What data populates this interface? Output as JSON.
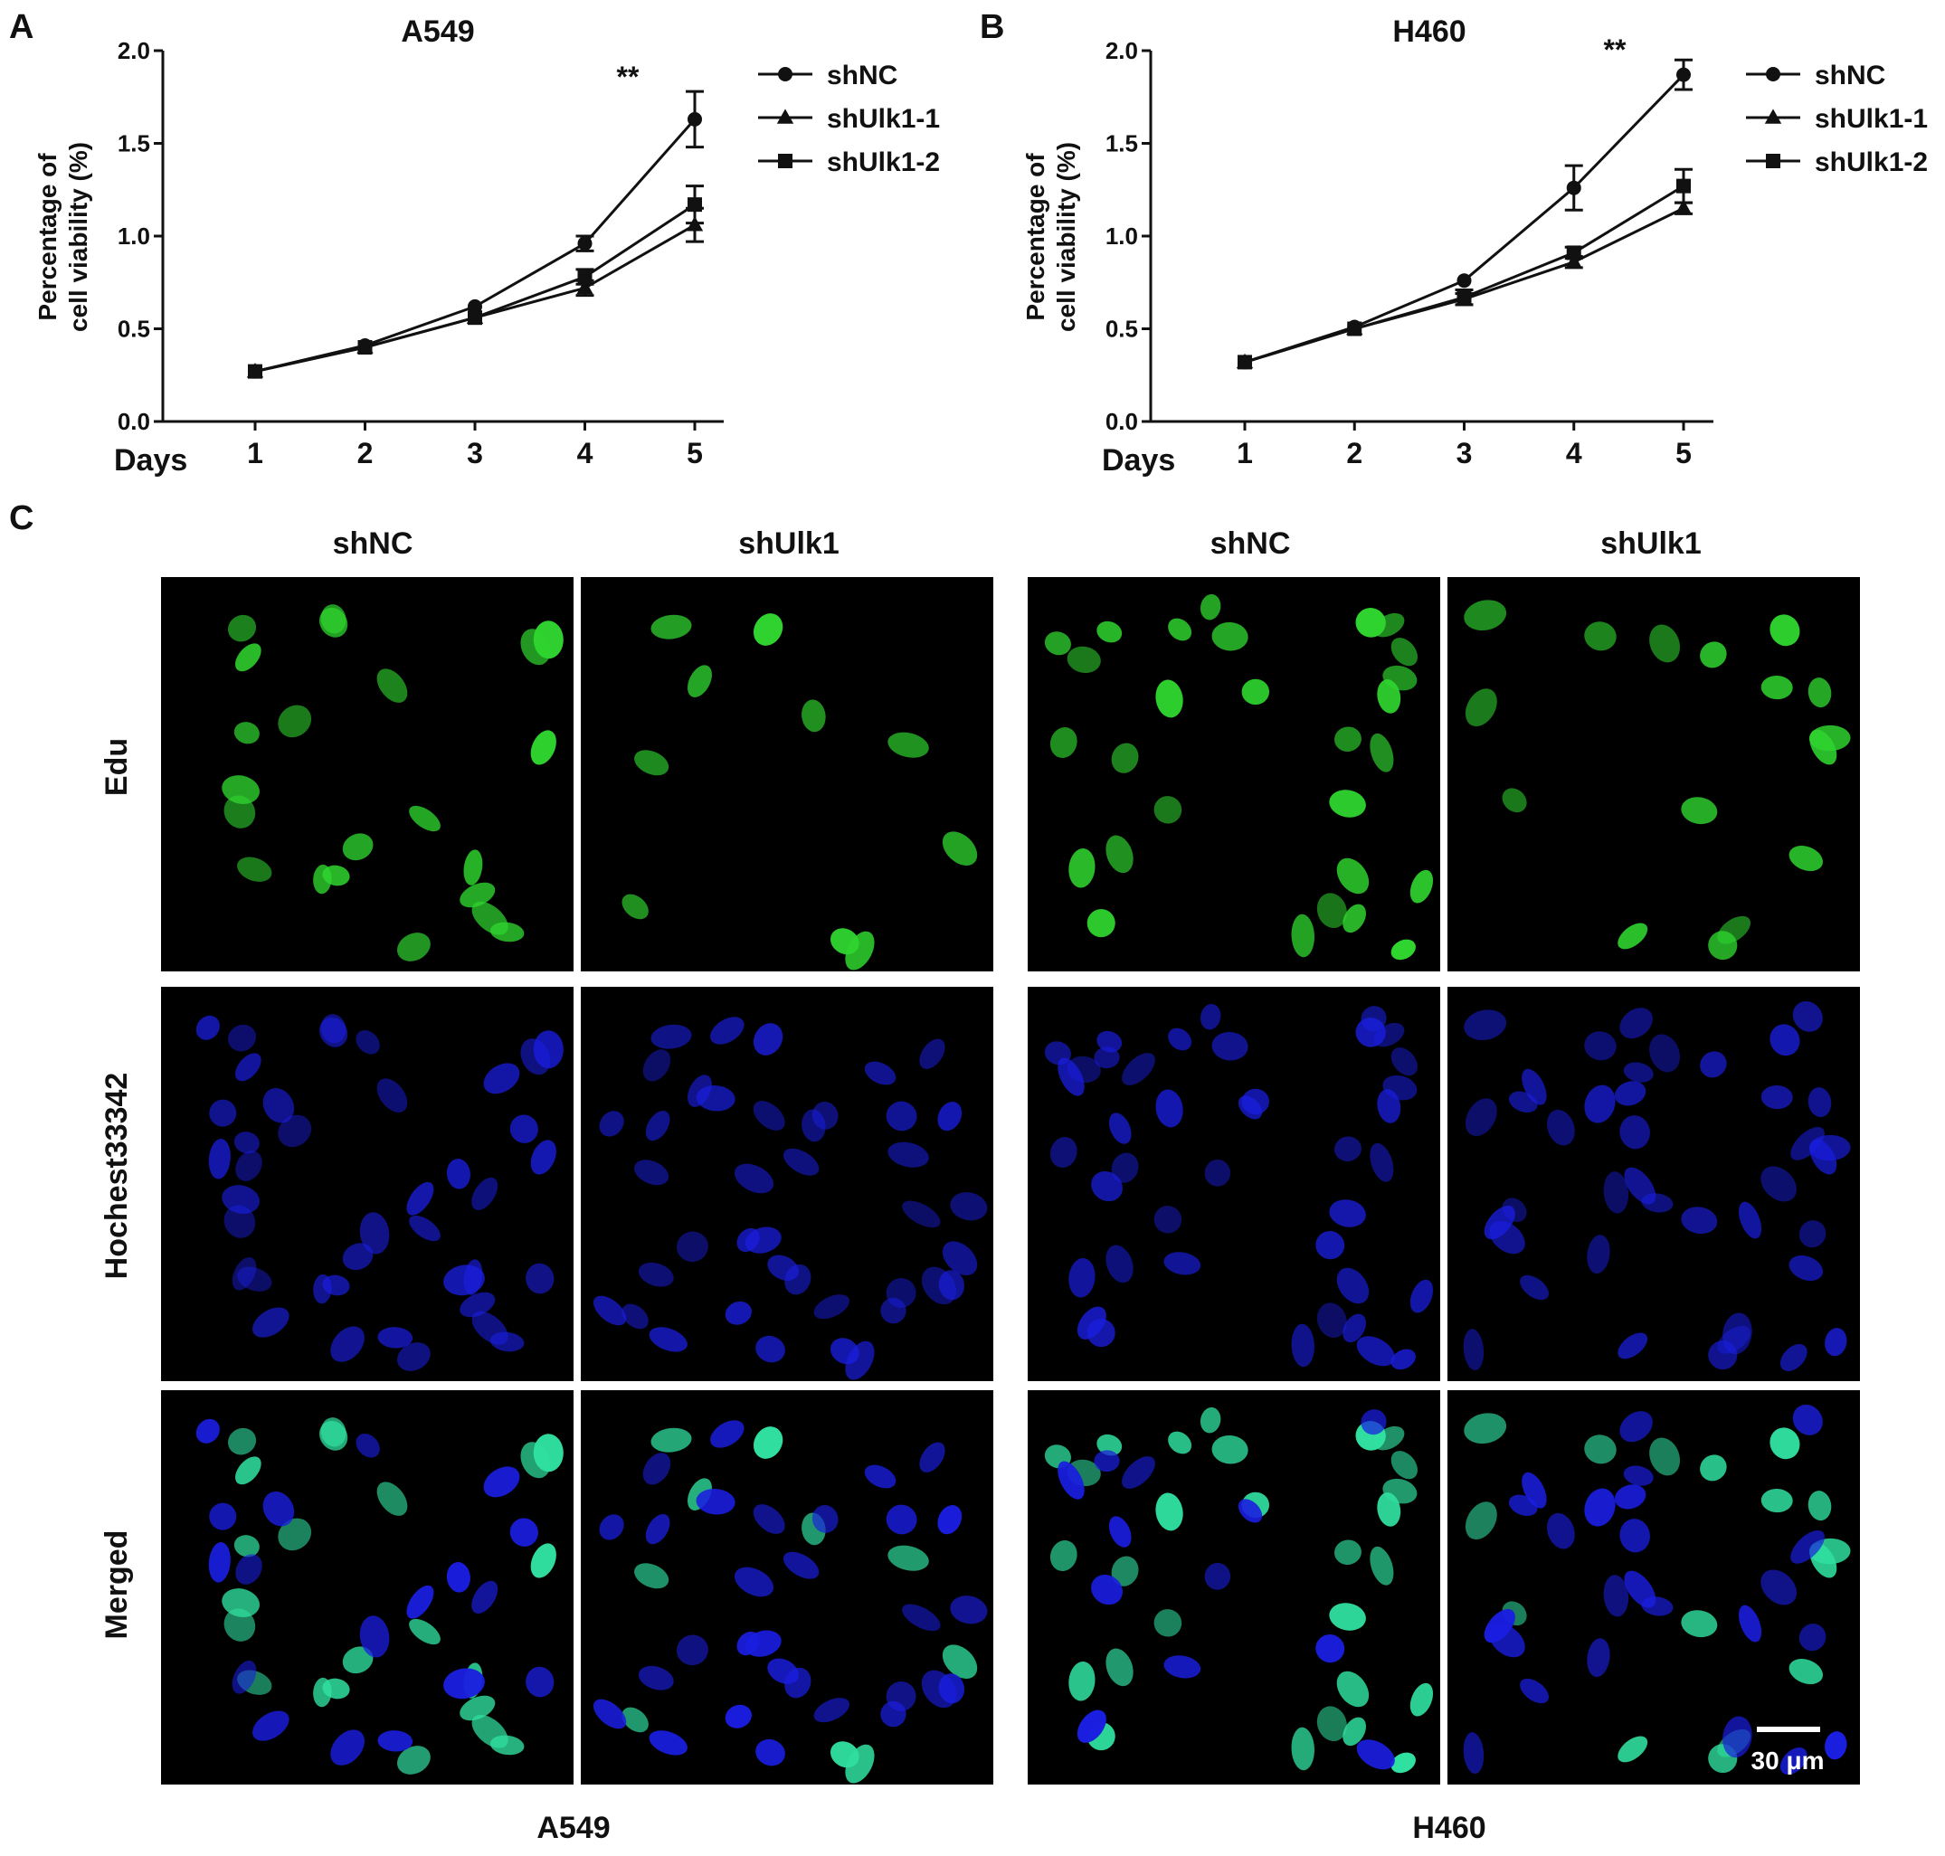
{
  "panels": {
    "A": {
      "letter": "A",
      "title": "A549",
      "ylabel_line1": "Percentage of",
      "ylabel_line2": "cell viability (%)",
      "xlabel": "Days",
      "significance": "**"
    },
    "B": {
      "letter": "B",
      "title": "H460",
      "ylabel_line1": "Percentage of",
      "ylabel_line2": "cell viability (%)",
      "xlabel": "Days",
      "significance": "**"
    },
    "C": {
      "letter": "C",
      "column_headers": [
        "shNC",
        "shUlk1",
        "shNC",
        "shUlk1"
      ],
      "row_labels": [
        "Edu",
        "Hochest33342",
        "Merged"
      ],
      "cell_lines": [
        "A549",
        "H460"
      ],
      "scale_bar": "30 μm"
    }
  },
  "chart_data": [
    {
      "type": "line",
      "title": "A549",
      "ylabel": "Percentage of cell viability (%)",
      "xlabel": "Days",
      "x": [
        1,
        2,
        3,
        4,
        5
      ],
      "ylim": [
        0,
        2
      ],
      "yticks": [
        "0.0",
        "0.5",
        "1.0",
        "1.5",
        "2.0"
      ],
      "legend": "top-right, outside plot",
      "annotations": [
        {
          "x": 5,
          "text": "**"
        }
      ],
      "series": [
        {
          "name": "shNC",
          "marker": "circle",
          "values": [
            0.27,
            0.41,
            0.62,
            0.96,
            1.63
          ],
          "errors": [
            0.02,
            0.02,
            0.02,
            0.04,
            0.15
          ]
        },
        {
          "name": "shUlk1-1",
          "marker": "triangle",
          "values": [
            0.27,
            0.4,
            0.56,
            0.72,
            1.06
          ],
          "errors": [
            0.02,
            0.02,
            0.02,
            0.04,
            0.09
          ]
        },
        {
          "name": "shUlk1-2",
          "marker": "square",
          "values": [
            0.27,
            0.4,
            0.56,
            0.78,
            1.17
          ],
          "errors": [
            0.02,
            0.02,
            0.02,
            0.04,
            0.1
          ]
        }
      ]
    },
    {
      "type": "line",
      "title": "H460",
      "ylabel": "Percentage of cell viability (%)",
      "xlabel": "Days",
      "x": [
        1,
        2,
        3,
        4,
        5
      ],
      "ylim": [
        0,
        2
      ],
      "yticks": [
        "0.0",
        "0.5",
        "1.0",
        "1.5",
        "2.0"
      ],
      "legend": "top-right, outside plot",
      "annotations": [
        {
          "x": 5,
          "text": "**"
        }
      ],
      "series": [
        {
          "name": "shNC",
          "marker": "circle",
          "values": [
            0.32,
            0.51,
            0.76,
            1.26,
            1.87
          ],
          "errors": [
            0.02,
            0.02,
            0.02,
            0.12,
            0.08
          ]
        },
        {
          "name": "shUlk1-1",
          "marker": "triangle",
          "values": [
            0.32,
            0.5,
            0.66,
            0.86,
            1.15
          ],
          "errors": [
            0.02,
            0.02,
            0.03,
            0.03,
            0.03
          ]
        },
        {
          "name": "shUlk1-2",
          "marker": "square",
          "values": [
            0.32,
            0.5,
            0.67,
            0.91,
            1.27
          ],
          "errors": [
            0.02,
            0.02,
            0.04,
            0.03,
            0.09
          ]
        }
      ]
    }
  ],
  "micrographs": {
    "edu_color": "#2fd42f",
    "hoechst_color": "#1a1ee0",
    "merged_color": "#30e0a0",
    "background": "#000000"
  }
}
